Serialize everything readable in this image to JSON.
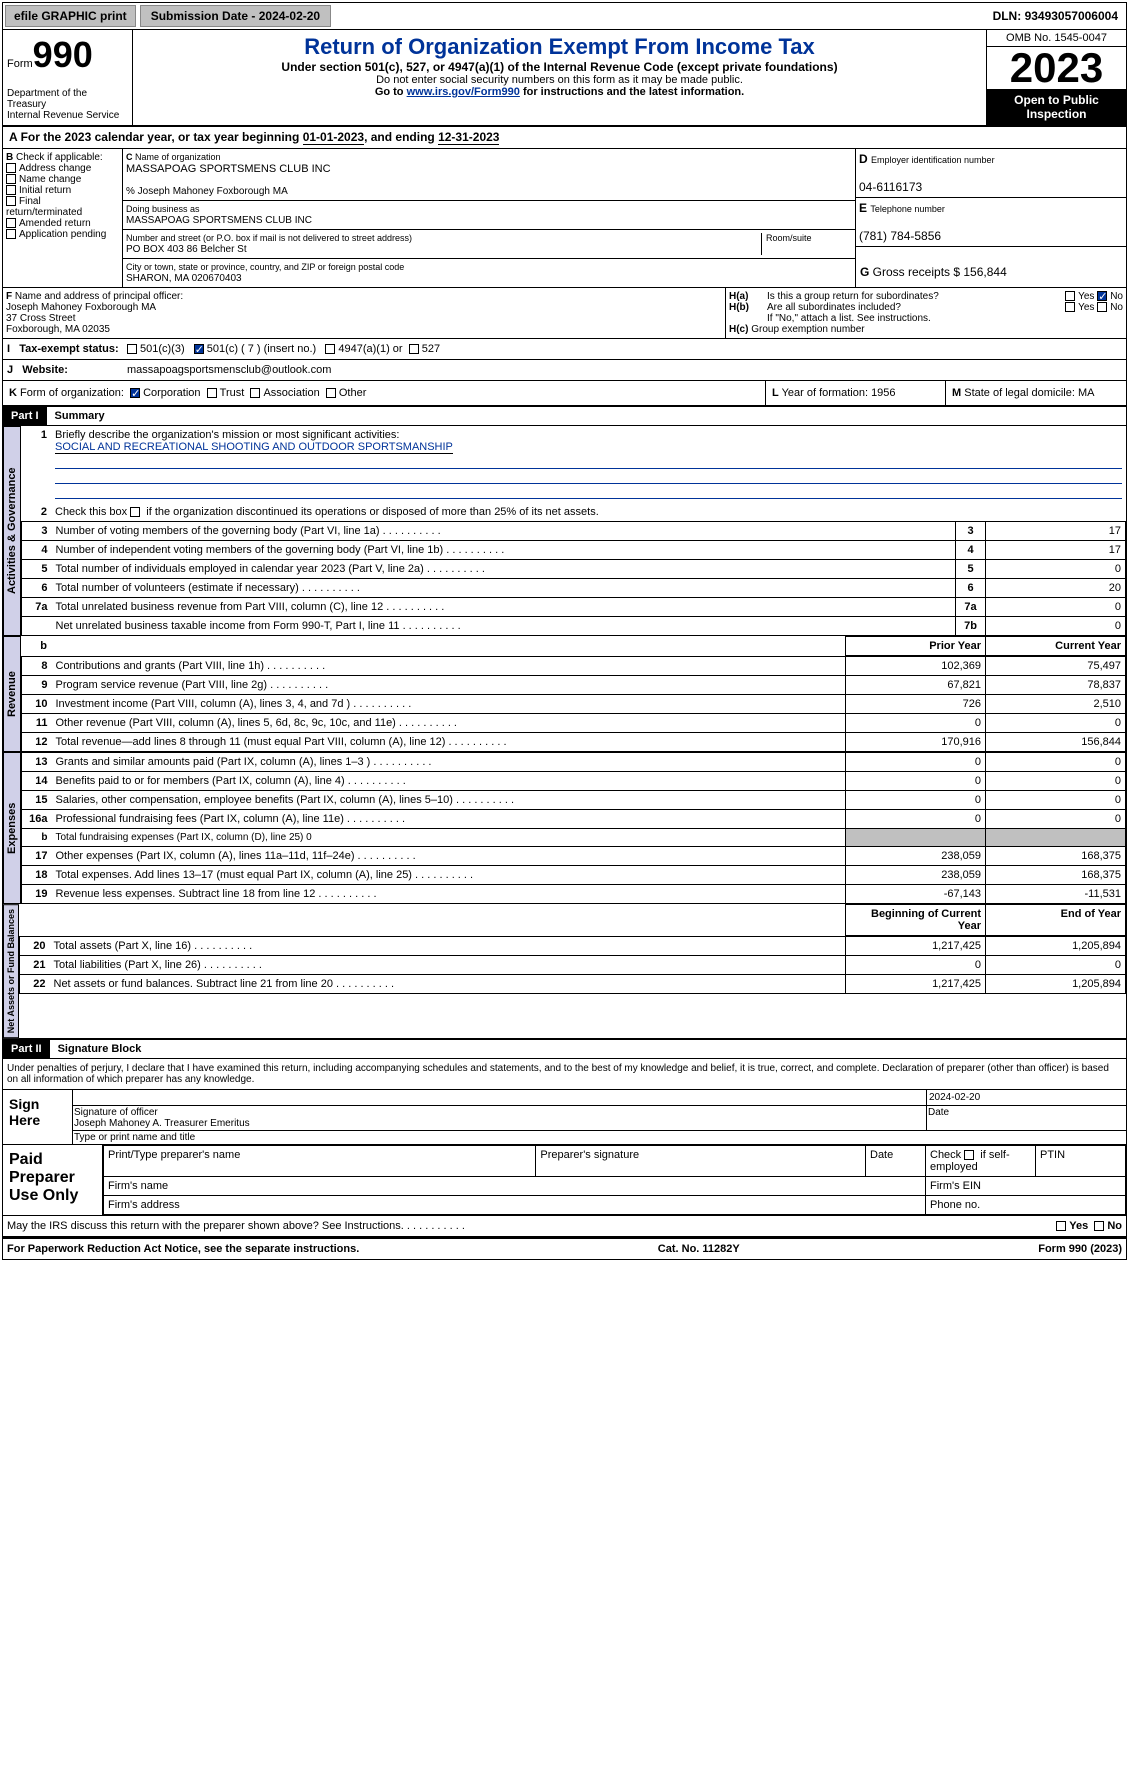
{
  "top": {
    "efile": "efile GRAPHIC print",
    "sub_date_lbl": "Submission Date - ",
    "sub_date": "2024-02-20",
    "dln_lbl": "DLN: ",
    "dln": "93493057006004"
  },
  "header": {
    "form_word": "Form",
    "form_no": "990",
    "dept": "Department of the Treasury\nInternal Revenue Service",
    "title": "Return of Organization Exempt From Income Tax",
    "subtitle": "Under section 501(c), 527, or 4947(a)(1) of the Internal Revenue Code (except private foundations)",
    "note1": "Do not enter social security numbers on this form as it may be made public.",
    "note2_pre": "Go to ",
    "note2_link": "www.irs.gov/Form990",
    "note2_post": " for instructions and the latest information.",
    "omb": "OMB No. 1545-0047",
    "year": "2023",
    "inspect": "Open to Public Inspection"
  },
  "A": {
    "text": "For the 2023 calendar year, or tax year beginning ",
    "d1": "01-01-2023",
    ", and ending ": "",
    "end": ", and ending ",
    "d2": "12-31-2023"
  },
  "B": {
    "title": "Check if applicable:",
    "opts": [
      "Address change",
      "Name change",
      "Initial return",
      "Final return/terminated",
      "Amended return",
      "Application pending"
    ]
  },
  "C": {
    "name_lbl": "Name of organization",
    "name": "MASSAPOAG SPORTSMENS CLUB INC",
    "care": "% Joseph Mahoney Foxborough MA",
    "dba_lbl": "Doing business as",
    "dba": "MASSAPOAG SPORTSMENS CLUB INC",
    "street_lbl": "Number and street (or P.O. box if mail is not delivered to street address)",
    "street": "PO BOX 403 86 Belcher St",
    "room_lbl": "Room/suite",
    "city_lbl": "City or town, state or province, country, and ZIP or foreign postal code",
    "city": "SHARON, MA  020670403"
  },
  "D": {
    "lbl": "Employer identification number",
    "val": "04-6116173"
  },
  "E": {
    "lbl": "Telephone number",
    "val": "(781) 784-5856"
  },
  "G": {
    "lbl": "Gross receipts $ ",
    "val": "156,844"
  },
  "F": {
    "lbl": "Name and address of principal officer:",
    "l1": "Joseph Mahoney Foxborough MA",
    "l2": "37 Cross Street",
    "l3": "Foxborough, MA  02035"
  },
  "H": {
    "a": "Is this a group return for subordinates?",
    "b": "Are all subordinates included?",
    "note": "If \"No,\" attach a list. See instructions.",
    "c": "Group exemption number",
    "yes": "Yes",
    "no": "No"
  },
  "I": {
    "lbl": "Tax-exempt status:",
    "o1": "501(c)(3)",
    "o2": "501(c) ( 7 ) (insert no.)",
    "o3": "4947(a)(1) or",
    "o4": "527"
  },
  "J": {
    "lbl": "Website:",
    "val": "massapoagsportsmensclub@outlook.com"
  },
  "K": {
    "lbl": "Form of organization:",
    "o1": "Corporation",
    "o2": "Trust",
    "o3": "Association",
    "o4": "Other"
  },
  "L": {
    "lbl": "Year of formation: ",
    "val": "1956"
  },
  "M": {
    "lbl": "State of legal domicile: ",
    "val": "MA"
  },
  "part1": {
    "hdr": "Part I",
    "title": "Summary",
    "l1": {
      "n": "1",
      "t": "Briefly describe the organization's mission or most significant activities:",
      "v": "SOCIAL AND RECREATIONAL SHOOTING AND OUTDOOR SPORTSMANSHIP"
    },
    "l2": {
      "n": "2",
      "t": "Check this box ",
      "t2": " if the organization discontinued its operations or disposed of more than 25% of its net assets."
    },
    "rows": [
      {
        "n": "3",
        "d": "Number of voting members of the governing body (Part VI, line 1a)",
        "c": "3",
        "v": "17"
      },
      {
        "n": "4",
        "d": "Number of independent voting members of the governing body (Part VI, line 1b)",
        "c": "4",
        "v": "17"
      },
      {
        "n": "5",
        "d": "Total number of individuals employed in calendar year 2023 (Part V, line 2a)",
        "c": "5",
        "v": "0"
      },
      {
        "n": "6",
        "d": "Total number of volunteers (estimate if necessary)",
        "c": "6",
        "v": "20"
      },
      {
        "n": "7a",
        "d": "Total unrelated business revenue from Part VIII, column (C), line 12",
        "c": "7a",
        "v": "0"
      },
      {
        "n": "",
        "d": "Net unrelated business taxable income from Form 990-T, Part I, line 11",
        "c": "7b",
        "v": "0"
      }
    ],
    "col_prior": "Prior Year",
    "col_curr": "Current Year",
    "rev_lbl": "Revenue",
    "rev": [
      {
        "n": "8",
        "d": "Contributions and grants (Part VIII, line 1h)",
        "p": "102,369",
        "c": "75,497"
      },
      {
        "n": "9",
        "d": "Program service revenue (Part VIII, line 2g)",
        "p": "67,821",
        "c": "78,837"
      },
      {
        "n": "10",
        "d": "Investment income (Part VIII, column (A), lines 3, 4, and 7d )",
        "p": "726",
        "c": "2,510"
      },
      {
        "n": "11",
        "d": "Other revenue (Part VIII, column (A), lines 5, 6d, 8c, 9c, 10c, and 11e)",
        "p": "0",
        "c": "0"
      },
      {
        "n": "12",
        "d": "Total revenue—add lines 8 through 11 (must equal Part VIII, column (A), line 12)",
        "p": "170,916",
        "c": "156,844"
      }
    ],
    "exp_lbl": "Expenses",
    "exp": [
      {
        "n": "13",
        "d": "Grants and similar amounts paid (Part IX, column (A), lines 1–3 )",
        "p": "0",
        "c": "0"
      },
      {
        "n": "14",
        "d": "Benefits paid to or for members (Part IX, column (A), line 4)",
        "p": "0",
        "c": "0"
      },
      {
        "n": "15",
        "d": "Salaries, other compensation, employee benefits (Part IX, column (A), lines 5–10)",
        "p": "0",
        "c": "0"
      },
      {
        "n": "16a",
        "d": "Professional fundraising fees (Part IX, column (A), line 11e)",
        "p": "0",
        "c": "0"
      },
      {
        "n": "b",
        "d": "Total fundraising expenses (Part IX, column (D), line 25) 0",
        "p": "",
        "c": "",
        "shade": true,
        "small": true
      },
      {
        "n": "17",
        "d": "Other expenses (Part IX, column (A), lines 11a–11d, 11f–24e)",
        "p": "238,059",
        "c": "168,375"
      },
      {
        "n": "18",
        "d": "Total expenses. Add lines 13–17 (must equal Part IX, column (A), line 25)",
        "p": "238,059",
        "c": "168,375"
      },
      {
        "n": "19",
        "d": "Revenue less expenses. Subtract line 18 from line 12",
        "p": "-67,143",
        "c": "-11,531"
      }
    ],
    "na_lbl": "Net Assets or Fund Balances",
    "col_beg": "Beginning of Current Year",
    "col_end": "End of Year",
    "na": [
      {
        "n": "20",
        "d": "Total assets (Part X, line 16)",
        "p": "1,217,425",
        "c": "1,205,894"
      },
      {
        "n": "21",
        "d": "Total liabilities (Part X, line 26)",
        "p": "0",
        "c": "0"
      },
      {
        "n": "22",
        "d": "Net assets or fund balances. Subtract line 21 from line 20",
        "p": "1,217,425",
        "c": "1,205,894"
      }
    ],
    "gov_lbl": "Activities & Governance"
  },
  "part2": {
    "hdr": "Part II",
    "title": "Signature Block",
    "decl": "Under penalties of perjury, I declare that I have examined this return, including accompanying schedules and statements, and to the best of my knowledge and belief, it is true, correct, and complete. Declaration of preparer (other than officer) is based on all information of which preparer has any knowledge."
  },
  "sign": {
    "lbl": "Sign Here",
    "sig_lbl": "Signature of officer",
    "date_lbl": "Date",
    "date": "2024-02-20",
    "name": "Joseph Mahoney A. Treasurer Emeritus",
    "name_lbl": "Type or print name and title"
  },
  "paid": {
    "lbl": "Paid Preparer Use Only",
    "c1": "Print/Type preparer's name",
    "c2": "Preparer's signature",
    "c3": "Date",
    "c4_pre": "Check ",
    "c4_post": " if self-employed",
    "c5": "PTIN",
    "f1": "Firm's name",
    "f2": "Firm's EIN",
    "f3": "Firm's address",
    "f4": "Phone no."
  },
  "discuss": {
    "t": "May the IRS discuss this return with the preparer shown above? See Instructions.",
    "yes": "Yes",
    "no": "No"
  },
  "footer": {
    "l": "For Paperwork Reduction Act Notice, see the separate instructions.",
    "c": "Cat. No. 11282Y",
    "r": "Form 990 (2023)"
  }
}
